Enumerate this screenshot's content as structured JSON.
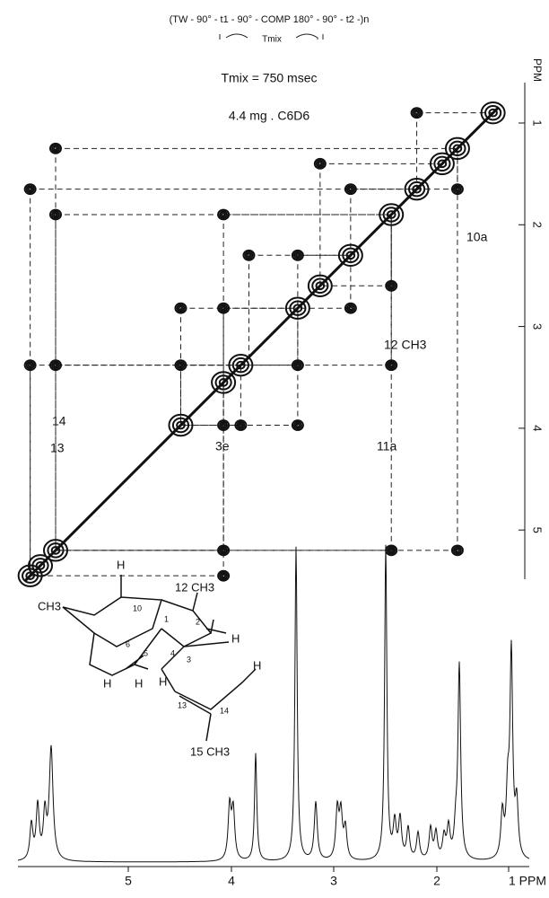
{
  "figure": {
    "pulse_sequence": "(TW - 90° - t1 - 90° - COMP 180° - 90° - t2 -)n",
    "mix_label": "Tmix",
    "conditions": [
      "Tmix = 750 msec",
      "4.4 mg . C6D6"
    ],
    "right_axis": {
      "ticks": [
        "1",
        "2",
        "3",
        "4",
        "5"
      ],
      "unit": "PPM"
    },
    "bottom_axis": {
      "ticks": [
        "5",
        "4",
        "3",
        "2",
        "1 PPM"
      ]
    },
    "peak_labels": [
      "10a",
      "12 CH3",
      "14",
      "13",
      "3e",
      "11a"
    ],
    "structure_labels": [
      "CH3",
      "H",
      "10",
      "12 CH3",
      "2",
      "1",
      "6",
      "5",
      "4",
      "3",
      "H",
      "H",
      "H",
      "H",
      "13",
      "14",
      "H",
      "15 CH3"
    ]
  }
}
